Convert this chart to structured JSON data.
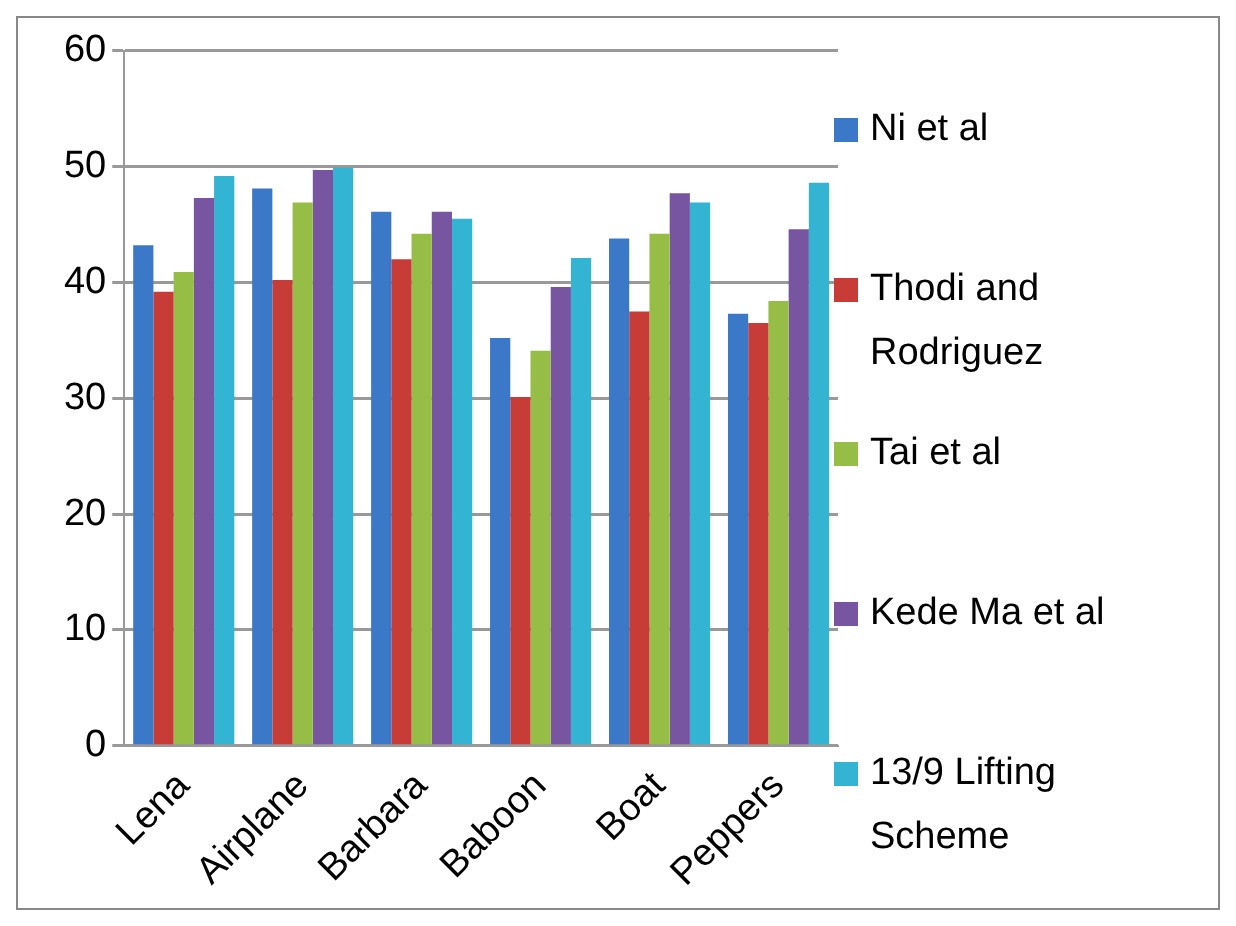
{
  "chart_data": {
    "type": "bar",
    "categories": [
      "Lena",
      "Airplane",
      "Barbara",
      "Baboon",
      "Boat",
      "Peppers"
    ],
    "series": [
      {
        "name": "Ni et al",
        "color": "#3c78c8",
        "values": [
          43.2,
          48.1,
          46.1,
          35.2,
          43.8,
          37.3
        ]
      },
      {
        "name": "Thodi and Rodriguez",
        "color": "#c83c37",
        "values": [
          39.2,
          40.2,
          42.0,
          30.1,
          37.5,
          36.5
        ]
      },
      {
        "name": "Tai et al",
        "color": "#96be46",
        "values": [
          40.9,
          46.9,
          44.2,
          34.1,
          44.2,
          38.4
        ]
      },
      {
        "name": "Kede Ma et al",
        "color": "#7855a0",
        "values": [
          47.3,
          49.7,
          46.1,
          39.6,
          47.7,
          44.6
        ]
      },
      {
        "name": "13/9 Lifting Scheme",
        "color": "#32b4d2",
        "values": [
          49.2,
          49.9,
          45.5,
          42.1,
          46.9,
          48.6
        ]
      }
    ],
    "ylim": [
      0,
      60
    ],
    "yticks": [
      0,
      10,
      20,
      30,
      40,
      50,
      60
    ],
    "grid": "y",
    "legend": "right"
  }
}
